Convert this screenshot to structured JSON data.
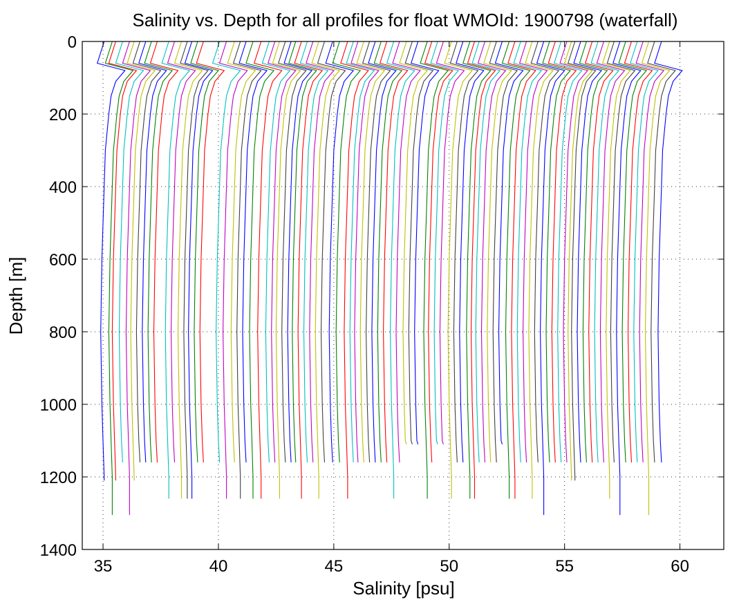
{
  "chart_data": {
    "type": "line",
    "title": "Salinity vs. Depth for all profiles for float WMOId: 1900798 (waterfall)",
    "xlabel": "Salinity [psu]",
    "ylabel": "Depth [m]",
    "xlim": [
      34.1,
      61.9
    ],
    "ylim": [
      0,
      1400
    ],
    "y_reversed": true,
    "x_ticks": [
      "35",
      "40",
      "45",
      "50",
      "55",
      "60"
    ],
    "x_tick_values": [
      35,
      40,
      45,
      50,
      55,
      60
    ],
    "y_ticks": [
      "0",
      "200",
      "400",
      "600",
      "800",
      "1000",
      "1200",
      "1400"
    ],
    "y_tick_values": [
      0,
      200,
      400,
      600,
      800,
      1000,
      1200,
      1400
    ],
    "grid": true,
    "legend": "none",
    "series_colors": [
      "#0000ff",
      "#008000",
      "#ff0000",
      "#00bfbf",
      "#bf00bf",
      "#bfbf00",
      "#404040"
    ],
    "depth_levels": [
      0,
      60,
      80,
      110,
      150,
      200,
      300,
      400,
      600,
      800,
      1000,
      1100,
      1200
    ],
    "profile_shape_offsets": [
      0.0,
      -0.3,
      0.9,
      0.5,
      0.3,
      0.2,
      0.05,
      0.0,
      -0.1,
      -0.15,
      -0.1,
      -0.05,
      0.0
    ],
    "profiles": [
      {
        "offset": 35.05,
        "max_depth": 1210
      },
      {
        "offset": 35.4,
        "max_depth": 1305
      },
      {
        "offset": 35.55,
        "max_depth": 1210
      },
      {
        "offset": 35.85,
        "max_depth": 1160
      },
      {
        "offset": 36.15,
        "max_depth": 1305
      },
      {
        "offset": 36.35,
        "max_depth": 1210
      },
      {
        "offset": 36.6,
        "max_depth": 1160
      },
      {
        "offset": 36.85,
        "max_depth": 1160
      },
      {
        "offset": 37.1,
        "max_depth": 1160
      },
      {
        "offset": 37.35,
        "max_depth": 1160
      },
      {
        "offset": 37.85,
        "max_depth": 1260
      },
      {
        "offset": 38.1,
        "max_depth": 1160
      },
      {
        "offset": 38.4,
        "max_depth": 1260
      },
      {
        "offset": 38.65,
        "max_depth": 1260
      },
      {
        "offset": 38.85,
        "max_depth": 1260
      },
      {
        "offset": 39.1,
        "max_depth": 1160
      },
      {
        "offset": 39.35,
        "max_depth": 1160
      },
      {
        "offset": 40.05,
        "max_depth": 1160
      },
      {
        "offset": 40.35,
        "max_depth": 1260
      },
      {
        "offset": 40.7,
        "max_depth": 1160
      },
      {
        "offset": 40.95,
        "max_depth": 1260
      },
      {
        "offset": 41.2,
        "max_depth": 1160
      },
      {
        "offset": 41.5,
        "max_depth": 1260
      },
      {
        "offset": 41.85,
        "max_depth": 1260
      },
      {
        "offset": 42.2,
        "max_depth": 1160
      },
      {
        "offset": 42.45,
        "max_depth": 1160
      },
      {
        "offset": 42.65,
        "max_depth": 1260
      },
      {
        "offset": 42.9,
        "max_depth": 1160
      },
      {
        "offset": 43.15,
        "max_depth": 1160
      },
      {
        "offset": 43.35,
        "max_depth": 1160
      },
      {
        "offset": 43.6,
        "max_depth": 1260
      },
      {
        "offset": 43.85,
        "max_depth": 1160
      },
      {
        "offset": 44.1,
        "max_depth": 1160
      },
      {
        "offset": 44.35,
        "max_depth": 1260
      },
      {
        "offset": 44.6,
        "max_depth": 1160
      },
      {
        "offset": 44.95,
        "max_depth": 1160
      },
      {
        "offset": 45.25,
        "max_depth": 1160
      },
      {
        "offset": 45.6,
        "max_depth": 1260
      },
      {
        "offset": 45.85,
        "max_depth": 1160
      },
      {
        "offset": 46.05,
        "max_depth": 1160
      },
      {
        "offset": 46.3,
        "max_depth": 1160
      },
      {
        "offset": 46.55,
        "max_depth": 1160
      },
      {
        "offset": 46.8,
        "max_depth": 1160
      },
      {
        "offset": 47.05,
        "max_depth": 1160
      },
      {
        "offset": 47.3,
        "max_depth": 1160
      },
      {
        "offset": 47.6,
        "max_depth": 1260
      },
      {
        "offset": 47.85,
        "max_depth": 1160
      },
      {
        "offset": 48.15,
        "max_depth": 1110
      },
      {
        "offset": 48.4,
        "max_depth": 1110
      },
      {
        "offset": 48.65,
        "max_depth": 1110
      },
      {
        "offset": 49.05,
        "max_depth": 1260
      },
      {
        "offset": 49.25,
        "max_depth": 1160
      },
      {
        "offset": 49.5,
        "max_depth": 1110
      },
      {
        "offset": 49.75,
        "max_depth": 1110
      },
      {
        "offset": 50.1,
        "max_depth": 1260
      },
      {
        "offset": 50.35,
        "max_depth": 1160
      },
      {
        "offset": 50.6,
        "max_depth": 1160
      },
      {
        "offset": 50.9,
        "max_depth": 1260
      },
      {
        "offset": 51.1,
        "max_depth": 1260
      },
      {
        "offset": 51.3,
        "max_depth": 1160
      },
      {
        "offset": 51.55,
        "max_depth": 1160
      },
      {
        "offset": 51.8,
        "max_depth": 1160
      },
      {
        "offset": 52.05,
        "max_depth": 1160
      },
      {
        "offset": 52.3,
        "max_depth": 1110
      },
      {
        "offset": 52.6,
        "max_depth": 1260
      },
      {
        "offset": 52.85,
        "max_depth": 1260
      },
      {
        "offset": 53.1,
        "max_depth": 1160
      },
      {
        "offset": 53.35,
        "max_depth": 1160
      },
      {
        "offset": 53.6,
        "max_depth": 1260
      },
      {
        "offset": 53.85,
        "max_depth": 1160
      },
      {
        "offset": 54.1,
        "max_depth": 1305
      },
      {
        "offset": 54.35,
        "max_depth": 1160
      },
      {
        "offset": 54.6,
        "max_depth": 1160
      },
      {
        "offset": 54.85,
        "max_depth": 1160
      },
      {
        "offset": 55.1,
        "max_depth": 1160
      },
      {
        "offset": 55.3,
        "max_depth": 1210
      },
      {
        "offset": 55.45,
        "max_depth": 1210
      },
      {
        "offset": 55.7,
        "max_depth": 1160
      },
      {
        "offset": 55.95,
        "max_depth": 1160
      },
      {
        "offset": 56.2,
        "max_depth": 1160
      },
      {
        "offset": 56.45,
        "max_depth": 1160
      },
      {
        "offset": 56.7,
        "max_depth": 1160
      },
      {
        "offset": 56.95,
        "max_depth": 1260
      },
      {
        "offset": 57.15,
        "max_depth": 1160
      },
      {
        "offset": 57.4,
        "max_depth": 1305
      },
      {
        "offset": 57.65,
        "max_depth": 1160
      },
      {
        "offset": 57.9,
        "max_depth": 1160
      },
      {
        "offset": 58.15,
        "max_depth": 1160
      },
      {
        "offset": 58.4,
        "max_depth": 1160
      },
      {
        "offset": 58.65,
        "max_depth": 1305
      },
      {
        "offset": 58.9,
        "max_depth": 1160
      },
      {
        "offset": 59.2,
        "max_depth": 1160
      }
    ]
  }
}
